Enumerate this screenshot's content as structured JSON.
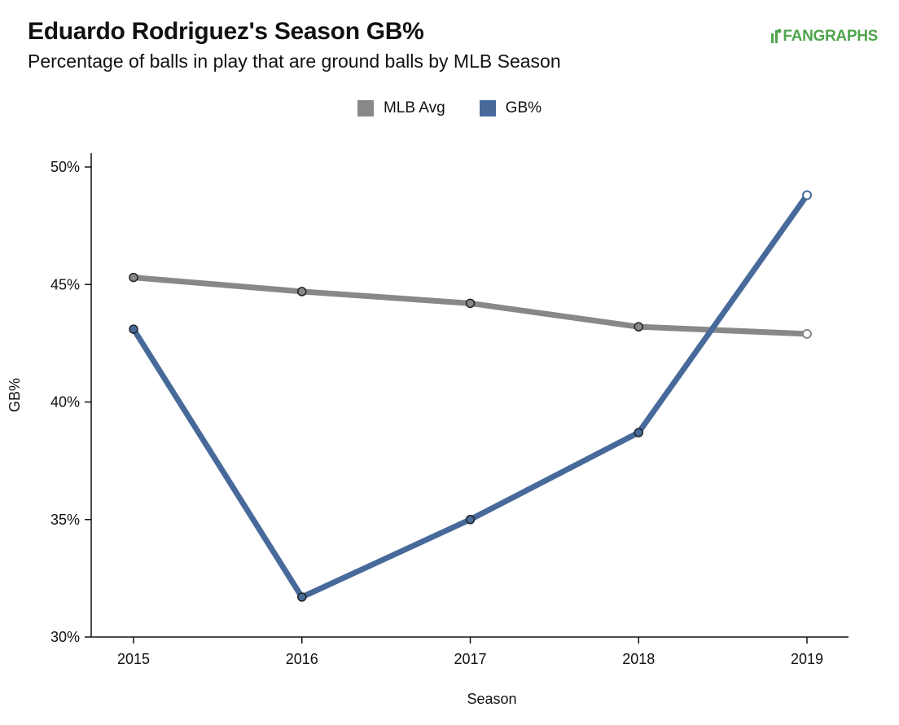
{
  "header": {
    "title": "Eduardo Rodriguez's Season GB%",
    "subtitle": "Percentage of balls in play that are ground balls by MLB Season",
    "logo_text": "FANGRAPHS"
  },
  "colors": {
    "mlb_avg": "#888888",
    "gb": "#476a9a",
    "logo": "#4fa54d"
  },
  "chart_data": {
    "type": "line",
    "title": "Eduardo Rodriguez's Season GB%",
    "subtitle": "Percentage of balls in play that are ground balls by MLB Season",
    "xlabel": "Season",
    "ylabel": "GB%",
    "categories": [
      "2015",
      "2016",
      "2017",
      "2018",
      "2019"
    ],
    "ylim": [
      30,
      50
    ],
    "y_ticks": [
      30,
      35,
      40,
      45,
      50
    ],
    "y_tick_labels": [
      "30%",
      "35%",
      "40%",
      "45%",
      "50%"
    ],
    "legend_position": "top-center",
    "grid": false,
    "series": [
      {
        "name": "MLB Avg",
        "color": "#888888",
        "values": [
          45.3,
          44.7,
          44.2,
          43.2,
          42.9
        ]
      },
      {
        "name": "GB%",
        "color": "#476a9a",
        "values": [
          43.1,
          31.7,
          35.0,
          38.7,
          48.8
        ]
      }
    ]
  }
}
